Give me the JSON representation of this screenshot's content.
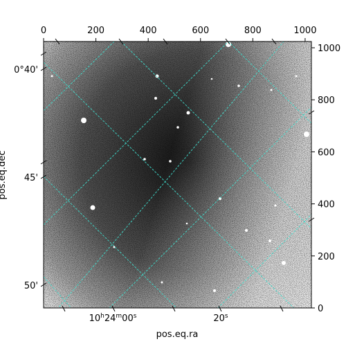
{
  "chart_data": {
    "type": "image",
    "title": "",
    "xlabel": "pos.eq.ra",
    "ylabel": "pos.eq.dec",
    "pixel_axes": {
      "x_range": [
        0,
        1024
      ],
      "y_range": [
        0,
        1024
      ],
      "x_ticks": [
        {
          "value": 0,
          "label": "0"
        },
        {
          "value": 200,
          "label": "200"
        },
        {
          "value": 400,
          "label": "400"
        },
        {
          "value": 600,
          "label": "600"
        },
        {
          "value": 800,
          "label": "800"
        },
        {
          "value": 1000,
          "label": "1000"
        }
      ],
      "y_ticks": [
        {
          "value": 0,
          "label": "0"
        },
        {
          "value": 200,
          "label": "200"
        },
        {
          "value": 400,
          "label": "400"
        },
        {
          "value": 600,
          "label": "600"
        },
        {
          "value": 800,
          "label": "800"
        },
        {
          "value": 1000,
          "label": "1000"
        }
      ]
    },
    "world_axes": {
      "ra_ticks": [
        {
          "value_seconds": 0,
          "label_base": "10",
          "label_h": "h",
          "label_mid": "24",
          "label_m": "m",
          "label_tail": "00",
          "label_s": "s"
        },
        {
          "value_seconds": 20,
          "label_base": "20",
          "label_s": "s"
        }
      ],
      "dec_ticks": [
        {
          "value_arcmin": 40,
          "label": "0°40'"
        },
        {
          "value_arcmin": 45,
          "label": "45'"
        },
        {
          "value_arcmin": 50,
          "label": "50'"
        }
      ]
    },
    "grid": true,
    "grid_color": "#40e0d0",
    "colormap": "gray"
  }
}
